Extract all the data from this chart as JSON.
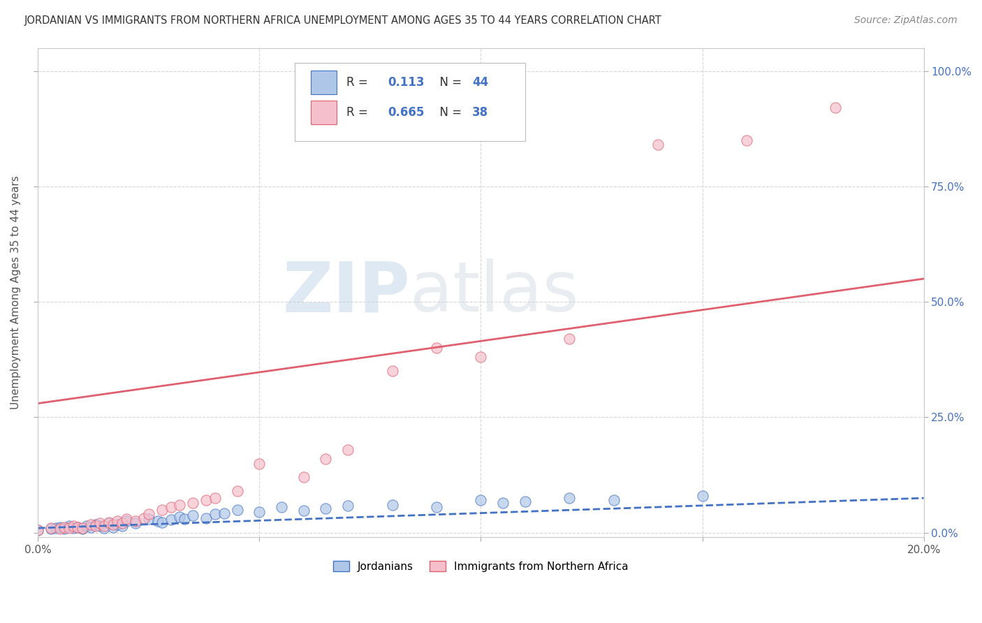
{
  "title": "JORDANIAN VS IMMIGRANTS FROM NORTHERN AFRICA UNEMPLOYMENT AMONG AGES 35 TO 44 YEARS CORRELATION CHART",
  "source": "Source: ZipAtlas.com",
  "ylabel": "Unemployment Among Ages 35 to 44 years",
  "xlim": [
    0.0,
    0.2
  ],
  "ylim": [
    -0.01,
    1.05
  ],
  "yticks": [
    0.0,
    0.25,
    0.5,
    0.75,
    1.0
  ],
  "ytick_labels": [
    "0.0%",
    "25.0%",
    "50.0%",
    "75.0%",
    "100.0%"
  ],
  "xticks": [
    0.0,
    0.05,
    0.1,
    0.15,
    0.2
  ],
  "xtick_labels": [
    "0.0%",
    "",
    "",
    "",
    "20.0%"
  ],
  "legend_labels": [
    "Jordanians",
    "Immigrants from Northern Africa"
  ],
  "jordanian_color": "#aec6e8",
  "immigrant_color": "#f5bfcc",
  "jordanian_line_color": "#4472c4",
  "immigrant_line_color": "#e06070",
  "R_jordanian": 0.113,
  "N_jordanian": 44,
  "R_immigrant": 0.665,
  "N_immigrant": 38,
  "background_color": "#ffffff",
  "grid_color": "#cccccc",
  "watermark_zip": "ZIP",
  "watermark_atlas": "atlas",
  "jordanian_scatter_x": [
    0.0,
    0.003,
    0.004,
    0.005,
    0.006,
    0.007,
    0.008,
    0.009,
    0.01,
    0.011,
    0.012,
    0.013,
    0.014,
    0.015,
    0.016,
    0.017,
    0.018,
    0.019,
    0.02,
    0.022,
    0.025,
    0.027,
    0.028,
    0.03,
    0.032,
    0.033,
    0.035,
    0.038,
    0.04,
    0.042,
    0.045,
    0.05,
    0.055,
    0.06,
    0.065,
    0.07,
    0.08,
    0.09,
    0.1,
    0.105,
    0.11,
    0.12,
    0.13,
    0.15
  ],
  "jordanian_scatter_y": [
    0.005,
    0.008,
    0.01,
    0.012,
    0.008,
    0.015,
    0.01,
    0.012,
    0.008,
    0.015,
    0.012,
    0.018,
    0.015,
    0.01,
    0.02,
    0.012,
    0.018,
    0.015,
    0.025,
    0.02,
    0.03,
    0.025,
    0.022,
    0.028,
    0.035,
    0.03,
    0.038,
    0.032,
    0.04,
    0.042,
    0.05,
    0.045,
    0.055,
    0.048,
    0.052,
    0.058,
    0.06,
    0.055,
    0.07,
    0.065,
    0.068,
    0.075,
    0.07,
    0.08
  ],
  "immigrant_scatter_x": [
    0.0,
    0.003,
    0.005,
    0.006,
    0.007,
    0.008,
    0.009,
    0.01,
    0.012,
    0.013,
    0.014,
    0.015,
    0.016,
    0.017,
    0.018,
    0.019,
    0.02,
    0.022,
    0.024,
    0.025,
    0.028,
    0.03,
    0.032,
    0.035,
    0.038,
    0.04,
    0.045,
    0.05,
    0.06,
    0.065,
    0.07,
    0.08,
    0.09,
    0.1,
    0.12,
    0.14,
    0.16,
    0.18
  ],
  "immigrant_scatter_y": [
    0.005,
    0.01,
    0.008,
    0.012,
    0.01,
    0.015,
    0.012,
    0.01,
    0.018,
    0.015,
    0.02,
    0.015,
    0.022,
    0.018,
    0.025,
    0.02,
    0.03,
    0.025,
    0.032,
    0.04,
    0.05,
    0.055,
    0.06,
    0.065,
    0.07,
    0.075,
    0.09,
    0.15,
    0.12,
    0.16,
    0.18,
    0.35,
    0.4,
    0.38,
    0.42,
    0.84,
    0.85,
    0.92
  ],
  "jord_line_x": [
    0.0,
    0.2
  ],
  "jord_line_y": [
    0.01,
    0.075
  ],
  "immig_line_x": [
    0.0,
    0.2
  ],
  "immig_line_y": [
    0.28,
    0.55
  ]
}
